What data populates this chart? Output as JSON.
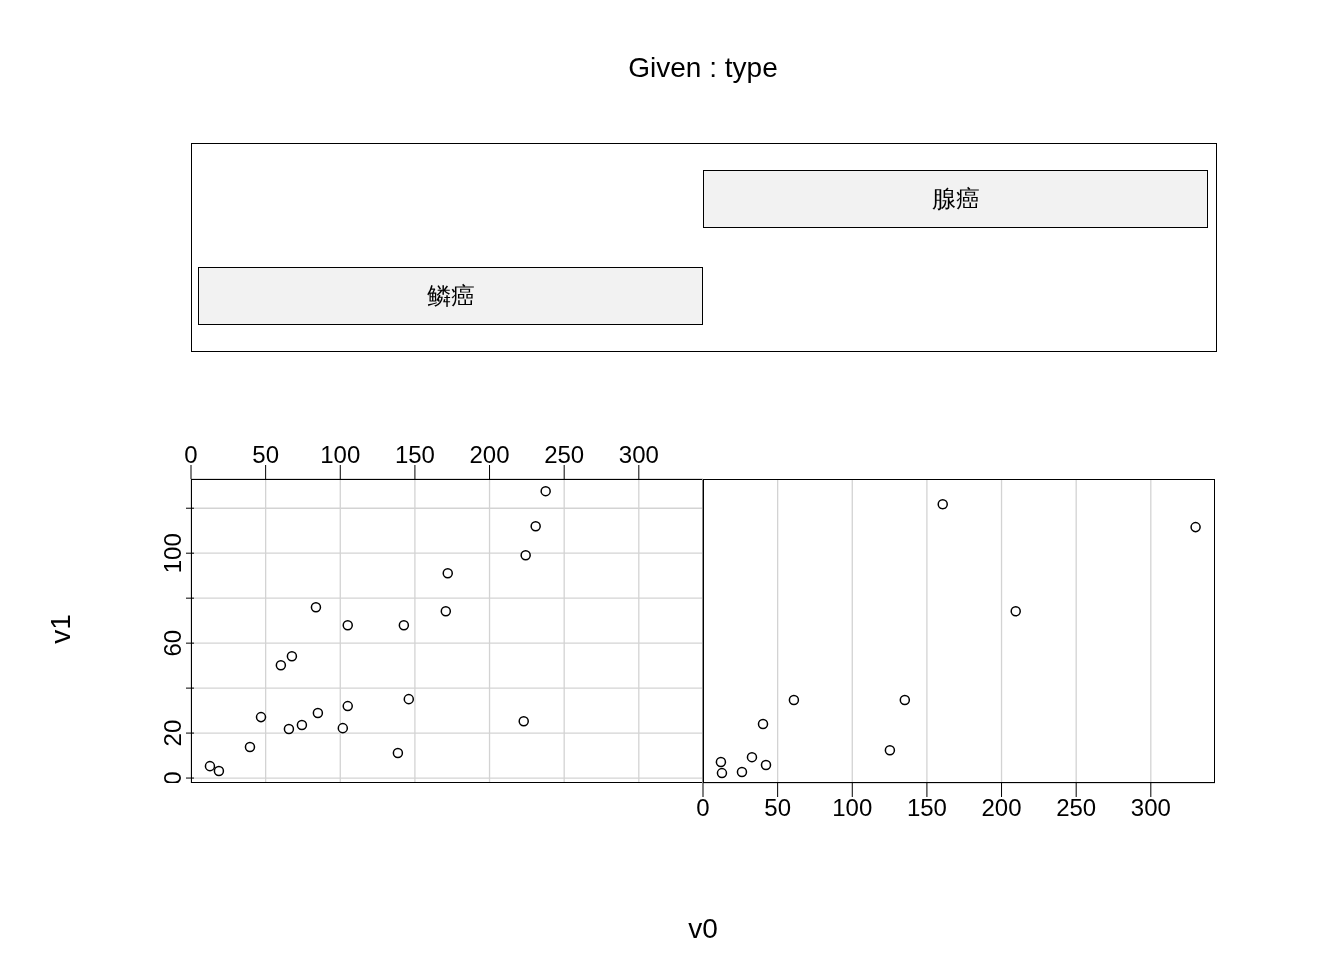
{
  "chart_data": [
    {
      "type": "other",
      "title": "Given : type",
      "annotations": [
        "鳞癌",
        "腺癌"
      ]
    },
    {
      "type": "scatter",
      "ylabel": "v1",
      "xlim": [
        0,
        343
      ],
      "xticks": [
        0,
        50,
        100,
        150,
        200,
        250,
        300
      ],
      "ylim": [
        -2.2,
        133
      ],
      "yticks": [
        0,
        20,
        {
          "value": 40,
          "label": null
        },
        60,
        {
          "value": 80,
          "label": null
        },
        100,
        {
          "value": 120,
          "label": null
        }
      ],
      "grid": true,
      "marker": "circle",
      "series": [
        {
          "color": "#000000",
          "x": [
            12.7,
            18.7,
            39.5,
            46.9,
            60.2,
            67.6,
            65.6,
            74.3,
            83.7,
            85,
            105,
            105,
            101.7,
            138.6,
            142.6,
            145.9,
            170.7,
            172,
            222.9,
            224.2,
            230.9,
            237.6
          ],
          "values": [
            5.3,
            3.1,
            13.8,
            27.1,
            50.2,
            54.2,
            21.8,
            23.6,
            76,
            28.9,
            68,
            32,
            22.2,
            11.1,
            68,
            35.1,
            74.2,
            91.1,
            25.3,
            99.1,
            112,
            127.6
          ]
        }
      ]
    },
    {
      "type": "scatter",
      "xlabel": "v0",
      "xlim": [
        0,
        343
      ],
      "xticks": [
        0,
        50,
        100,
        150,
        200,
        250,
        300
      ],
      "ylim": [
        -2.2,
        133
      ],
      "tick_labels": "x",
      "grid": true,
      "marker": "circle",
      "series": [
        {
          "color": "#000000",
          "x": [
            12,
            12.7,
            26.1,
            32.8,
            42.2,
            40.2,
            60.9,
            125.2,
            135.2,
            160.6,
            209.5,
            330
          ],
          "values": [
            7.1,
            2.2,
            2.7,
            9.3,
            5.8,
            24,
            34.7,
            12.4,
            34.7,
            121.8,
            74.2,
            111.6
          ]
        }
      ]
    }
  ]
}
